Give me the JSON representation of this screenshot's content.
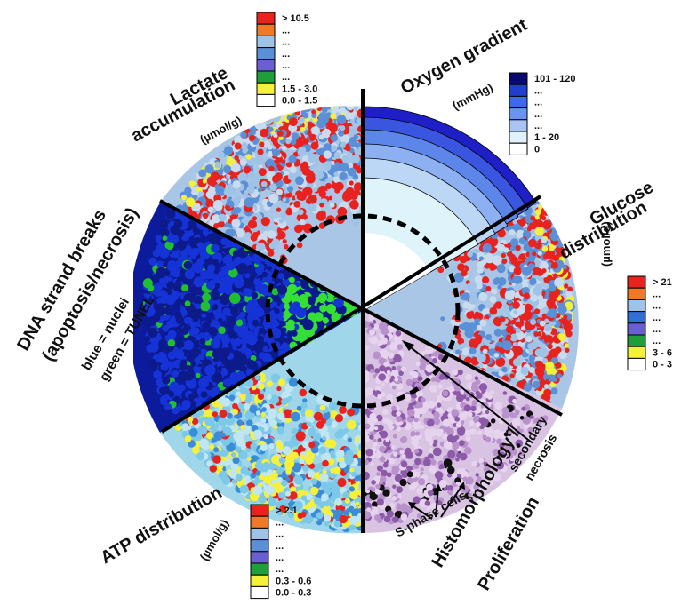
{
  "sectors": {
    "lactate": {
      "title_line1": "Lactate",
      "title_line2": "accumulation",
      "unit": "(µmol/g)",
      "legend": {
        "labels": [
          "> 10.5",
          "...",
          "...",
          "...",
          "...",
          "...",
          "1.5 - 3.0",
          "0.0 - 1.5"
        ],
        "colors": [
          "#e8231f",
          "#f07826",
          "#9fc3e6",
          "#5b8fd6",
          "#6a5fd0",
          "#1f9e3a",
          "#f5f03a",
          "#ffffff"
        ]
      }
    },
    "oxygen": {
      "title": "Oxygen gradient",
      "unit": "(mmHg)",
      "legend": {
        "labels": [
          "101 - 120",
          "...",
          "...",
          "...",
          "...",
          "1 - 20",
          "0"
        ],
        "colors": [
          "#0a0a6e",
          "#1f3fcf",
          "#3c6ae8",
          "#6b93f0",
          "#a7c4f5",
          "#dff1fb",
          "#ffffff"
        ]
      }
    },
    "glucose": {
      "title_line1": "Glucose",
      "title_line2": "distribution",
      "unit": "(µmol/g)",
      "legend": {
        "labels": [
          "> 21",
          "...",
          "...",
          "...",
          "...",
          "...",
          "3 - 6",
          "0 - 3"
        ],
        "colors": [
          "#e8231f",
          "#f07826",
          "#9fc3e6",
          "#2f6fd6",
          "#6a5fd0",
          "#1f9e3a",
          "#f5f03a",
          "#ffffff"
        ]
      }
    },
    "dna": {
      "title_line1": "DNA strand breaks",
      "title_line2": "(apoptosis/necrosis)",
      "note_line1": "blue = nuclei",
      "note_line2": "green = TUNEL"
    },
    "atp": {
      "title": "ATP distribution",
      "unit": "(µmol/g)",
      "legend": {
        "labels": [
          "> 2.1",
          "...",
          "...",
          "...",
          "...",
          "...",
          "0.3 - 0.6",
          "0.0 - 0.3"
        ],
        "colors": [
          "#e8231f",
          "#f07826",
          "#9fc3e6",
          "#5b8fd6",
          "#6a5fd0",
          "#1f9e3a",
          "#f5f03a",
          "#ffffff"
        ]
      }
    },
    "histo": {
      "title_line1": "Histomorphology /",
      "title_line2": "Proliferation",
      "annot_necrosis_line1": "secondary",
      "annot_necrosis_line2": "necrosis",
      "annot_sphase": "S-phase cells"
    }
  }
}
